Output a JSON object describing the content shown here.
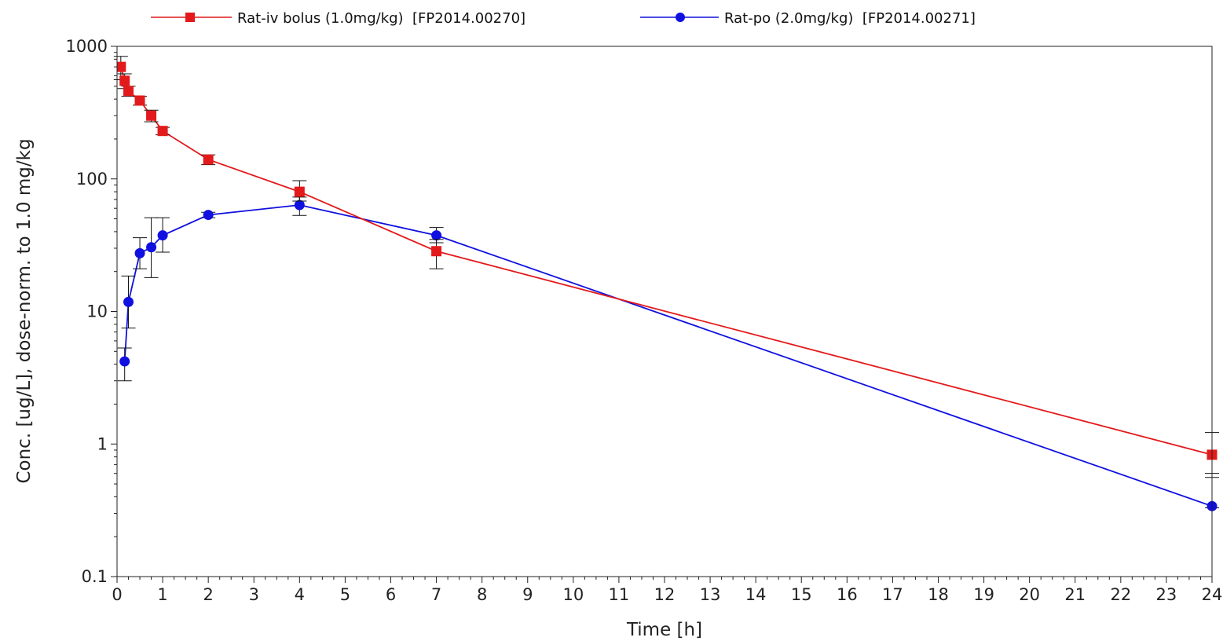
{
  "chart_data": {
    "type": "line",
    "xlabel": "Time [h]",
    "ylabel": "Conc. [ug/L], dose-norm. to 1.0 mg/kg",
    "xlim": [
      0,
      24
    ],
    "ylim": [
      0.1,
      1000
    ],
    "yscale": "log",
    "x_ticks": [
      "0",
      "1",
      "2",
      "3",
      "4",
      "5",
      "6",
      "7",
      "8",
      "9",
      "10",
      "11",
      "12",
      "13",
      "14",
      "15",
      "16",
      "17",
      "18",
      "19",
      "20",
      "21",
      "22",
      "23",
      "24"
    ],
    "y_ticks": [
      "0.1",
      "1",
      "10",
      "100",
      "1000"
    ],
    "legend_position": "top",
    "grid": false,
    "series": [
      {
        "name": "Rat-iv bolus (1.0mg/kg)  [FP2014.00270]",
        "color": "#e31a1c",
        "marker": "square",
        "x": [
          0.083,
          0.167,
          0.25,
          0.5,
          0.75,
          1,
          2,
          4,
          7,
          24
        ],
        "y": [
          700,
          550,
          460,
          390,
          300,
          230,
          140,
          80,
          28.5,
          0.83
        ],
        "err_low": [
          560,
          480,
          420,
          360,
          270,
          215,
          128,
          68,
          21,
          0.6
        ],
        "err_high": [
          840,
          620,
          500,
          420,
          330,
          245,
          152,
          97,
          35,
          1.22
        ]
      },
      {
        "name": "Rat-po (2.0mg/kg)  [FP2014.00271]",
        "color": "#1010e0",
        "marker": "circle",
        "x": [
          0.167,
          0.25,
          0.5,
          0.75,
          1,
          2,
          4,
          7,
          24
        ],
        "y": [
          4.2,
          11.8,
          27.5,
          30.5,
          37.5,
          53.5,
          63.5,
          37.5,
          0.34
        ],
        "err_low": [
          3.0,
          7.5,
          21,
          18,
          28,
          51,
          53,
          33,
          0.33
        ],
        "err_high": [
          5.3,
          18.5,
          36,
          51,
          51,
          56,
          73,
          43,
          0.56
        ]
      }
    ]
  }
}
